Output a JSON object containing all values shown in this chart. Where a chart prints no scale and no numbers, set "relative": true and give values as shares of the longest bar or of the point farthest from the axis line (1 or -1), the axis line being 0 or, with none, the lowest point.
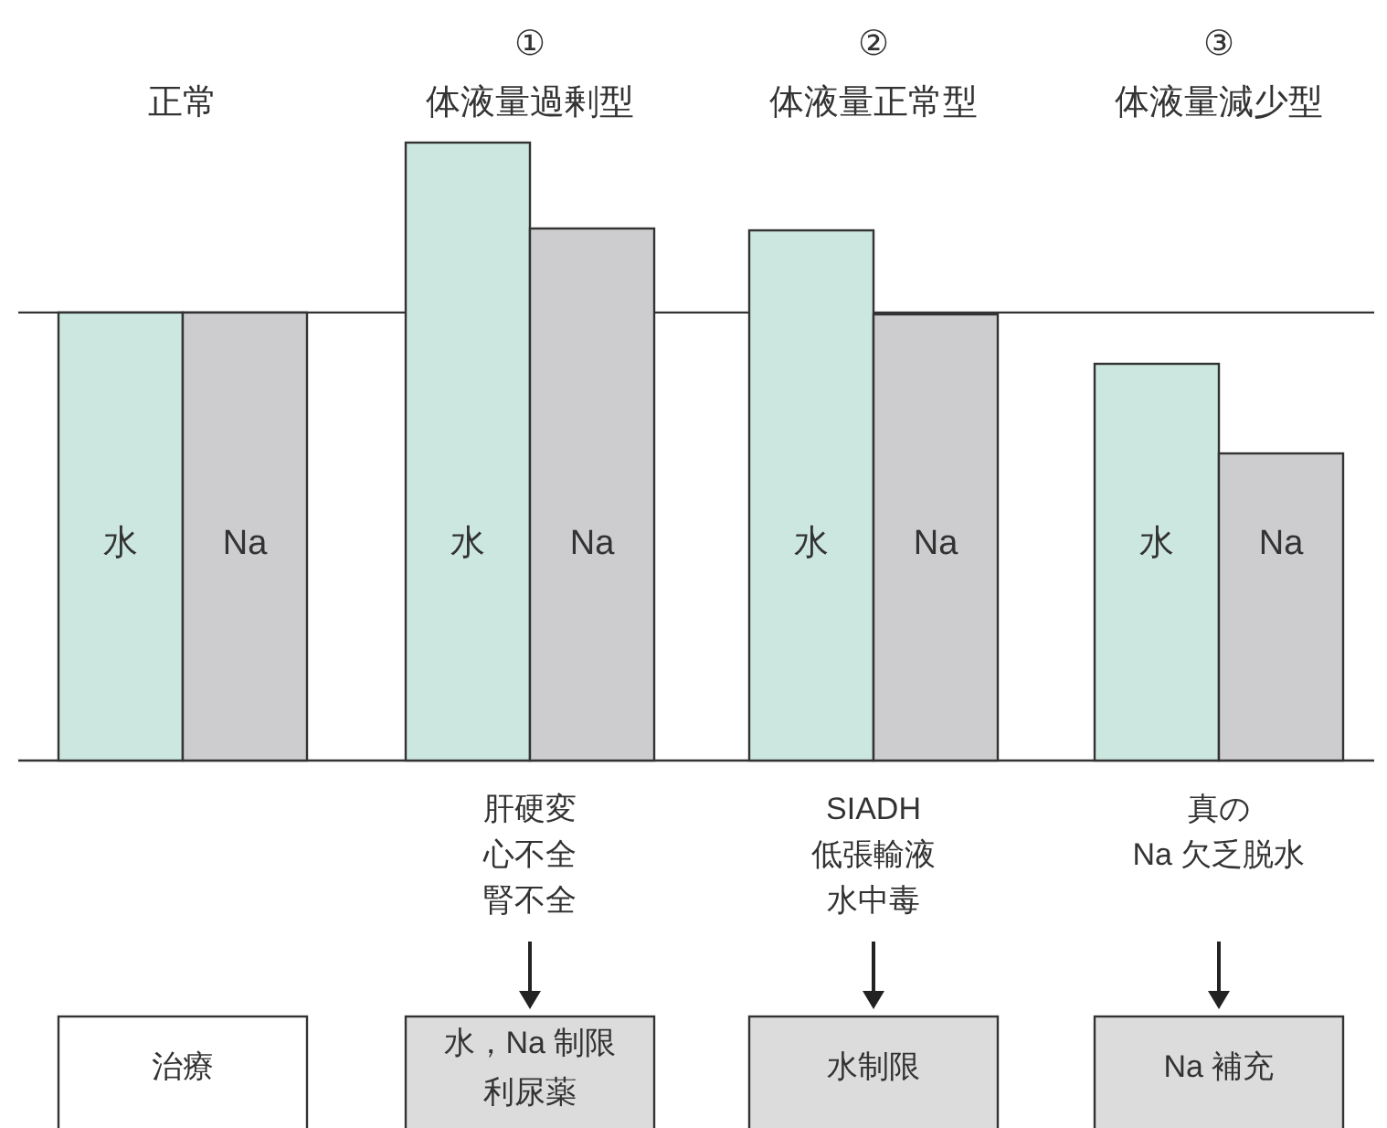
{
  "chart_data": {
    "type": "bar",
    "relative": true,
    "categories": [
      "正常",
      "①\n体液量過剰型",
      "②\n体液量正常型",
      "③\n体液量減少型"
    ],
    "series": [
      {
        "name": "水",
        "color": "#cce7df",
        "values": [
          0.725,
          1,
          0.858,
          0.642
        ]
      },
      {
        "name": "Na",
        "color": "#cdcdd0",
        "values": [
          0.725,
          0.861,
          0.722,
          0.497
        ]
      }
    ],
    "ref_lines": [
      {
        "axis": "y",
        "value": 0.725
      }
    ],
    "annotations": [
      "肝硬変",
      "心不全",
      "腎不全",
      "SIADH",
      "低張輸液",
      "水中毒",
      "真の\nNa 欠乏脱水",
      "治療",
      "水，Na 制限",
      "利尿薬",
      "水制限",
      "Na 補充"
    ]
  }
}
